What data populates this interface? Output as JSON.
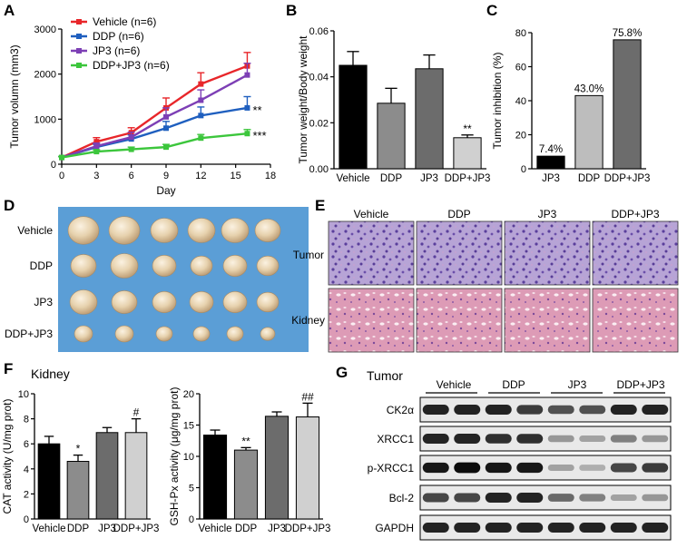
{
  "panel_labels": [
    "A",
    "B",
    "C",
    "D",
    "E",
    "F",
    "G"
  ],
  "chart_data": [
    {
      "id": "A",
      "type": "line",
      "ylabel": "Tumor volumn (mm3)",
      "xlabel": "Day",
      "x": [
        0,
        3,
        6,
        9,
        12,
        16
      ],
      "xticks": [
        "0",
        "3",
        "6",
        "9",
        "12",
        "15",
        "18"
      ],
      "xlim": [
        0,
        18
      ],
      "yticks": [
        "0",
        "1000",
        "2000",
        "3000"
      ],
      "ylim": [
        0,
        3000
      ],
      "series": [
        {
          "name": "Vehicle (n=6)",
          "color": "#e8262a",
          "values": [
            150,
            500,
            700,
            1250,
            1780,
            2180
          ],
          "err": [
            20,
            90,
            110,
            220,
            250,
            300
          ]
        },
        {
          "name": "DDP (n=6)",
          "color": "#1f5fbf",
          "values": [
            150,
            380,
            560,
            800,
            1080,
            1250
          ],
          "err": [
            20,
            60,
            90,
            150,
            190,
            250
          ]
        },
        {
          "name": "JP3 (n=6)",
          "color": "#7d3fb5",
          "values": [
            150,
            400,
            600,
            1050,
            1420,
            1980
          ],
          "err": [
            20,
            70,
            110,
            200,
            230,
            260
          ]
        },
        {
          "name": "DDP+JP3 (n=6)",
          "color": "#3cc63c",
          "values": [
            150,
            280,
            330,
            380,
            580,
            680
          ],
          "err": [
            20,
            40,
            50,
            60,
            80,
            90
          ]
        }
      ],
      "annotations": [
        {
          "series": 1,
          "text": "**"
        },
        {
          "series": 3,
          "text": "***"
        }
      ]
    },
    {
      "id": "B",
      "type": "bar",
      "ylabel": "Tumor weight/Body weight",
      "categories": [
        "Vehicle",
        "DDP",
        "JP3",
        "DDP+JP3"
      ],
      "values": [
        0.045,
        0.0285,
        0.0435,
        0.0135
      ],
      "err": [
        0.006,
        0.0065,
        0.006,
        0.0012
      ],
      "colors": [
        "#000000",
        "#8c8c8c",
        "#6c6c6c",
        "#d0d0d0"
      ],
      "yticks": [
        "0.00",
        "0.02",
        "0.04",
        "0.06"
      ],
      "ylim": [
        0,
        0.06
      ],
      "sig": [
        "",
        "",
        "",
        "**"
      ]
    },
    {
      "id": "C",
      "type": "bar",
      "ylabel": "Tumor inhibition (%)",
      "categories": [
        "JP3",
        "DDP",
        "DDP+JP3"
      ],
      "values": [
        7.4,
        43.0,
        75.8
      ],
      "data_labels": [
        "7.4%",
        "43.0%",
        "75.8%"
      ],
      "colors": [
        "#000000",
        "#bdbdbd",
        "#6c6c6c"
      ],
      "yticks": [
        "0",
        "20",
        "40",
        "60",
        "80"
      ],
      "ylim": [
        0,
        80
      ]
    },
    {
      "id": "F1",
      "type": "bar",
      "title": "Kidney",
      "ylabel": "CAT activity (U/mg prot)",
      "categories": [
        "Vehicle",
        "DDP",
        "JP3",
        "DDP+JP3"
      ],
      "values": [
        6.0,
        4.6,
        6.9,
        6.9
      ],
      "err": [
        0.6,
        0.5,
        0.4,
        1.1
      ],
      "colors": [
        "#000000",
        "#8c8c8c",
        "#6c6c6c",
        "#d0d0d0"
      ],
      "yticks": [
        "0",
        "2",
        "4",
        "6",
        "8",
        "10"
      ],
      "ylim": [
        0,
        10
      ],
      "sig": [
        "",
        "*",
        "",
        "#"
      ]
    },
    {
      "id": "F2",
      "type": "bar",
      "ylabel": "GSH-Px activity (μg/mg prot)",
      "categories": [
        "Vehicle",
        "DDP",
        "JP3",
        "DDP+JP3"
      ],
      "values": [
        13.4,
        11.0,
        16.4,
        16.3
      ],
      "err": [
        0.8,
        0.4,
        0.7,
        2.2
      ],
      "colors": [
        "#000000",
        "#8c8c8c",
        "#6c6c6c",
        "#d0d0d0"
      ],
      "yticks": [
        "0",
        "5",
        "10",
        "15",
        "20"
      ],
      "ylim": [
        0,
        20
      ],
      "sig": [
        "",
        "**",
        "",
        "##"
      ]
    }
  ],
  "panel_d": {
    "rows": [
      "Vehicle",
      "DDP",
      "JP3",
      "DDP+JP3"
    ],
    "bg": "#5b9ed6"
  },
  "panel_e": {
    "columns": [
      "Vehicle",
      "DDP",
      "JP3",
      "DDP+JP3"
    ],
    "rows": [
      "Tumor",
      "Kidney"
    ]
  },
  "panel_g": {
    "title": "Tumor",
    "groups": [
      "Vehicle",
      "DDP",
      "JP3",
      "DDP+JP3"
    ],
    "proteins": [
      "CK2α",
      "XRCC1",
      "p-XRCC1",
      "Bcl-2",
      "GAPDH"
    ],
    "band_intensity": [
      [
        0.85,
        0.85,
        0.85,
        0.75,
        0.65,
        0.65,
        0.85,
        0.85
      ],
      [
        0.85,
        0.85,
        0.8,
        0.8,
        0.35,
        0.3,
        0.45,
        0.35
      ],
      [
        0.9,
        0.95,
        0.9,
        0.9,
        0.3,
        0.25,
        0.7,
        0.75
      ],
      [
        0.7,
        0.7,
        0.85,
        0.85,
        0.55,
        0.45,
        0.3,
        0.35
      ],
      [
        0.85,
        0.85,
        0.85,
        0.85,
        0.85,
        0.85,
        0.85,
        0.85
      ]
    ]
  }
}
